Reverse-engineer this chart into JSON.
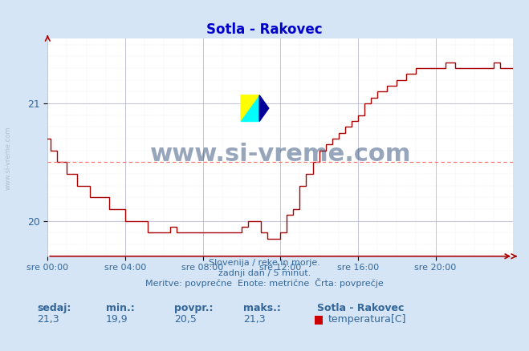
{
  "title": "Sotla - Rakovec",
  "background_color": "#d5e5f5",
  "plot_bg_color": "#ffffff",
  "line_color": "#aa0000",
  "grid_color_major": "#aaaacc",
  "grid_color_minor": "#ddddee",
  "avg_line_color": "#ff6666",
  "ylabel_color": "#336699",
  "xlabel_color": "#336699",
  "title_color": "#0000cc",
  "watermark_color": "#1a3a6a",
  "text_below": [
    "Slovenija / reke in morje.",
    "zadnji dan / 5 minut.",
    "Meritve: povprečne  Enote: metrične  Črta: povprečje"
  ],
  "stats_labels": [
    "sedaj:",
    "min.:",
    "povpr.:",
    "maks.:"
  ],
  "stats_values": [
    "21,3",
    "19,9",
    "20,5",
    "21,3"
  ],
  "legend_station": "Sotla - Rakovec",
  "legend_param": "temperatura[C]",
  "legend_color": "#cc0000",
  "ylim_min": 19.7,
  "ylim_max": 21.55,
  "avg_value": 20.5,
  "yticks": [
    20,
    21
  ],
  "x_tick_positions": [
    0,
    240,
    480,
    720,
    960,
    1200,
    1440
  ],
  "x_tick_labels": [
    "sre 00:00",
    "sre 04:00",
    "sre 08:00",
    "sre 12:00",
    "sre 16:00",
    "sre 20:00",
    ""
  ],
  "total_minutes": 1440,
  "temperature_data": [
    [
      0,
      20.7
    ],
    [
      10,
      20.7
    ],
    [
      10,
      20.6
    ],
    [
      30,
      20.6
    ],
    [
      30,
      20.5
    ],
    [
      60,
      20.5
    ],
    [
      60,
      20.4
    ],
    [
      90,
      20.4
    ],
    [
      90,
      20.3
    ],
    [
      130,
      20.3
    ],
    [
      130,
      20.2
    ],
    [
      190,
      20.2
    ],
    [
      190,
      20.1
    ],
    [
      240,
      20.1
    ],
    [
      240,
      20.0
    ],
    [
      310,
      20.0
    ],
    [
      310,
      19.9
    ],
    [
      380,
      19.9
    ],
    [
      380,
      19.95
    ],
    [
      400,
      19.95
    ],
    [
      400,
      19.9
    ],
    [
      450,
      19.9
    ],
    [
      450,
      19.9
    ],
    [
      510,
      19.9
    ],
    [
      510,
      19.9
    ],
    [
      600,
      19.9
    ],
    [
      600,
      19.95
    ],
    [
      620,
      19.95
    ],
    [
      620,
      20.0
    ],
    [
      660,
      20.0
    ],
    [
      660,
      19.9
    ],
    [
      680,
      19.9
    ],
    [
      680,
      19.85
    ],
    [
      720,
      19.85
    ],
    [
      720,
      19.9
    ],
    [
      740,
      19.9
    ],
    [
      740,
      20.05
    ],
    [
      760,
      20.05
    ],
    [
      760,
      20.1
    ],
    [
      780,
      20.1
    ],
    [
      780,
      20.3
    ],
    [
      800,
      20.3
    ],
    [
      800,
      20.4
    ],
    [
      820,
      20.4
    ],
    [
      820,
      20.5
    ],
    [
      840,
      20.5
    ],
    [
      840,
      20.6
    ],
    [
      860,
      20.6
    ],
    [
      860,
      20.65
    ],
    [
      880,
      20.65
    ],
    [
      880,
      20.7
    ],
    [
      900,
      20.7
    ],
    [
      900,
      20.75
    ],
    [
      920,
      20.75
    ],
    [
      920,
      20.8
    ],
    [
      940,
      20.8
    ],
    [
      940,
      20.85
    ],
    [
      960,
      20.85
    ],
    [
      960,
      20.9
    ],
    [
      980,
      20.9
    ],
    [
      980,
      21.0
    ],
    [
      1000,
      21.0
    ],
    [
      1000,
      21.05
    ],
    [
      1020,
      21.05
    ],
    [
      1020,
      21.1
    ],
    [
      1050,
      21.1
    ],
    [
      1050,
      21.15
    ],
    [
      1080,
      21.15
    ],
    [
      1080,
      21.2
    ],
    [
      1110,
      21.2
    ],
    [
      1110,
      21.25
    ],
    [
      1140,
      21.25
    ],
    [
      1140,
      21.3
    ],
    [
      1200,
      21.3
    ],
    [
      1200,
      21.3
    ],
    [
      1230,
      21.3
    ],
    [
      1230,
      21.35
    ],
    [
      1260,
      21.35
    ],
    [
      1260,
      21.3
    ],
    [
      1290,
      21.3
    ],
    [
      1290,
      21.3
    ],
    [
      1380,
      21.3
    ],
    [
      1380,
      21.35
    ],
    [
      1400,
      21.35
    ],
    [
      1400,
      21.3
    ],
    [
      1420,
      21.3
    ],
    [
      1420,
      21.3
    ],
    [
      1440,
      21.3
    ]
  ]
}
